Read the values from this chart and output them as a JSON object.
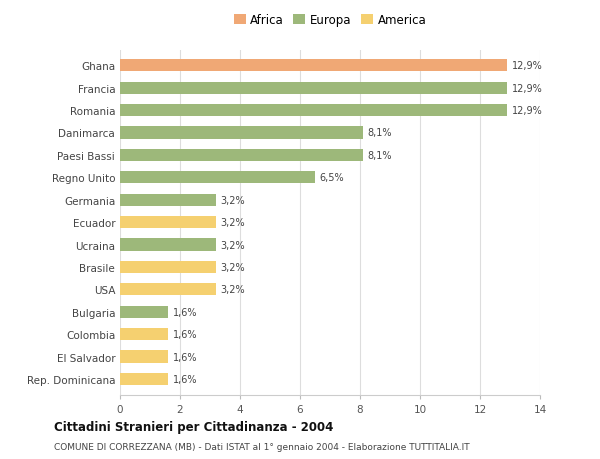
{
  "categories": [
    "Ghana",
    "Francia",
    "Romania",
    "Danimarca",
    "Paesi Bassi",
    "Regno Unito",
    "Germania",
    "Ecuador",
    "Ucraina",
    "Brasile",
    "USA",
    "Bulgaria",
    "Colombia",
    "El Salvador",
    "Rep. Dominicana"
  ],
  "values": [
    12.9,
    12.9,
    12.9,
    8.1,
    8.1,
    6.5,
    3.2,
    3.2,
    3.2,
    3.2,
    3.2,
    1.6,
    1.6,
    1.6,
    1.6
  ],
  "labels": [
    "12,9%",
    "12,9%",
    "12,9%",
    "8,1%",
    "8,1%",
    "6,5%",
    "3,2%",
    "3,2%",
    "3,2%",
    "3,2%",
    "3,2%",
    "1,6%",
    "1,6%",
    "1,6%",
    "1,6%"
  ],
  "colors": [
    "#f0a875",
    "#9db87a",
    "#9db87a",
    "#9db87a",
    "#9db87a",
    "#9db87a",
    "#9db87a",
    "#f5d070",
    "#9db87a",
    "#f5d070",
    "#f5d070",
    "#9db87a",
    "#f5d070",
    "#f5d070",
    "#f5d070"
  ],
  "legend_labels": [
    "Africa",
    "Europa",
    "America"
  ],
  "legend_colors": [
    "#f0a875",
    "#9db87a",
    "#f5d070"
  ],
  "title": "Cittadini Stranieri per Cittadinanza - 2004",
  "subtitle": "COMUNE DI CORREZZANA (MB) - Dati ISTAT al 1° gennaio 2004 - Elaborazione TUTTITALIA.IT",
  "xlim": [
    0,
    14
  ],
  "xticks": [
    0,
    2,
    4,
    6,
    8,
    10,
    12,
    14
  ],
  "bg_color": "#ffffff",
  "grid_color": "#dddddd",
  "bar_height": 0.55
}
